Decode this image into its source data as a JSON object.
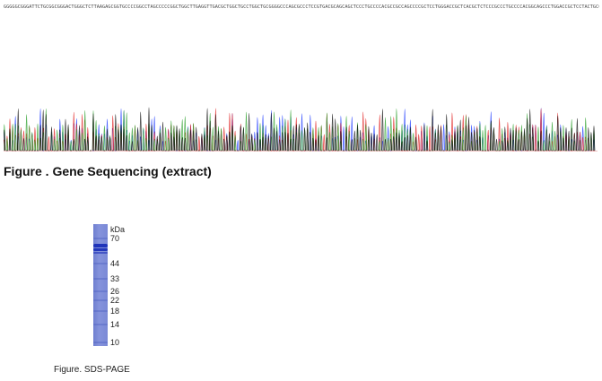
{
  "sequence": {
    "text": "GGGGGCGGGATTCTGCGGCGGGACTGGGCTCTTAAGAGCGGTGCCCCGGCCTAGCCCCCGGCTGGCTTGAGGTTGACGCTGGCTGCCTGGCTGCGGGGCCCAGCGCCCTCCGTGACGCAGCAGCTCCCTGCCCCACGCCGCCAGCCCCGCTCCTGGGACCGCTCACGCTCTCCCGCCCTGCCCCACGGCAGCCCTGGACCGCTCCTACTGCCCCGCCCGGG"
  },
  "chromatogram": {
    "colors": {
      "A": "#2ca02c",
      "C": "#1f3cff",
      "G": "#111111",
      "T": "#e02020"
    }
  },
  "figure1": {
    "caption": "Figure . Gene Sequencing (extract)"
  },
  "gel": {
    "unit": "kDa",
    "markers": [
      {
        "label": "70",
        "kda": 70
      },
      {
        "label": "44",
        "kda": 44
      },
      {
        "label": "33",
        "kda": 33
      },
      {
        "label": "26",
        "kda": 26
      },
      {
        "label": "22",
        "kda": 22
      },
      {
        "label": "18",
        "kda": 18
      },
      {
        "label": "14",
        "kda": 14
      },
      {
        "label": "10",
        "kda": 10
      }
    ],
    "lane_color": "#7a89d6",
    "band_color": "#1a2fb8"
  },
  "figure2": {
    "caption": "Figure. SDS-PAGE"
  }
}
